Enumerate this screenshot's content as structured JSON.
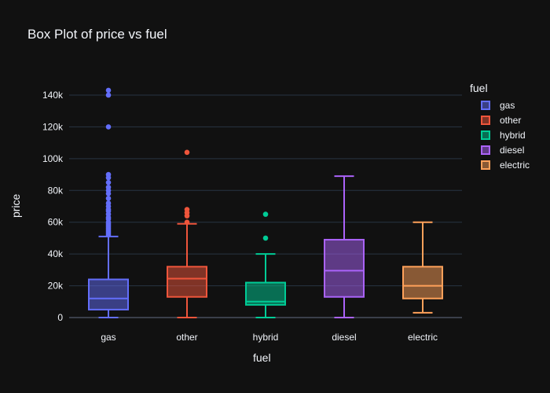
{
  "chart_data": {
    "type": "box",
    "title": "Box Plot of price vs fuel",
    "xlabel": "fuel",
    "ylabel": "price",
    "ylim": [
      -3000,
      150000
    ],
    "yticks": [
      0,
      20000,
      40000,
      60000,
      80000,
      100000,
      120000,
      140000
    ],
    "ytick_labels": [
      "0",
      "20k",
      "40k",
      "60k",
      "80k",
      "100k",
      "120k",
      "140k"
    ],
    "categories": [
      "gas",
      "other",
      "hybrid",
      "diesel",
      "electric"
    ],
    "legend_title": "fuel",
    "legend_position": "top-right",
    "grid": true,
    "series": [
      {
        "name": "gas",
        "color": "#636efa",
        "min": 0,
        "q1": 5000,
        "median": 12000,
        "q3": 24000,
        "max": 51000,
        "outliers": [
          52000,
          53000,
          54000,
          55000,
          56000,
          57000,
          58000,
          59000,
          60000,
          62000,
          63000,
          65000,
          67000,
          68000,
          70000,
          72000,
          75000,
          78000,
          80000,
          82000,
          85000,
          88000,
          90000,
          120000,
          140000,
          143000
        ]
      },
      {
        "name": "other",
        "color": "#ef553b",
        "min": 0,
        "q1": 13000,
        "median": 24500,
        "q3": 32000,
        "max": 59000,
        "outliers": [
          60000,
          64000,
          66000,
          68000,
          104000
        ]
      },
      {
        "name": "hybrid",
        "color": "#00cc96",
        "min": 0,
        "q1": 8000,
        "median": 10000,
        "q3": 22000,
        "max": 40000,
        "outliers": [
          50000,
          65000
        ]
      },
      {
        "name": "diesel",
        "color": "#ab63fa",
        "min": 0,
        "q1": 13000,
        "median": 29500,
        "q3": 49000,
        "max": 89000,
        "outliers": []
      },
      {
        "name": "electric",
        "color": "#ffa15a",
        "min": 3000,
        "q1": 12000,
        "median": 20000,
        "q3": 32000,
        "max": 60000,
        "outliers": []
      }
    ]
  }
}
